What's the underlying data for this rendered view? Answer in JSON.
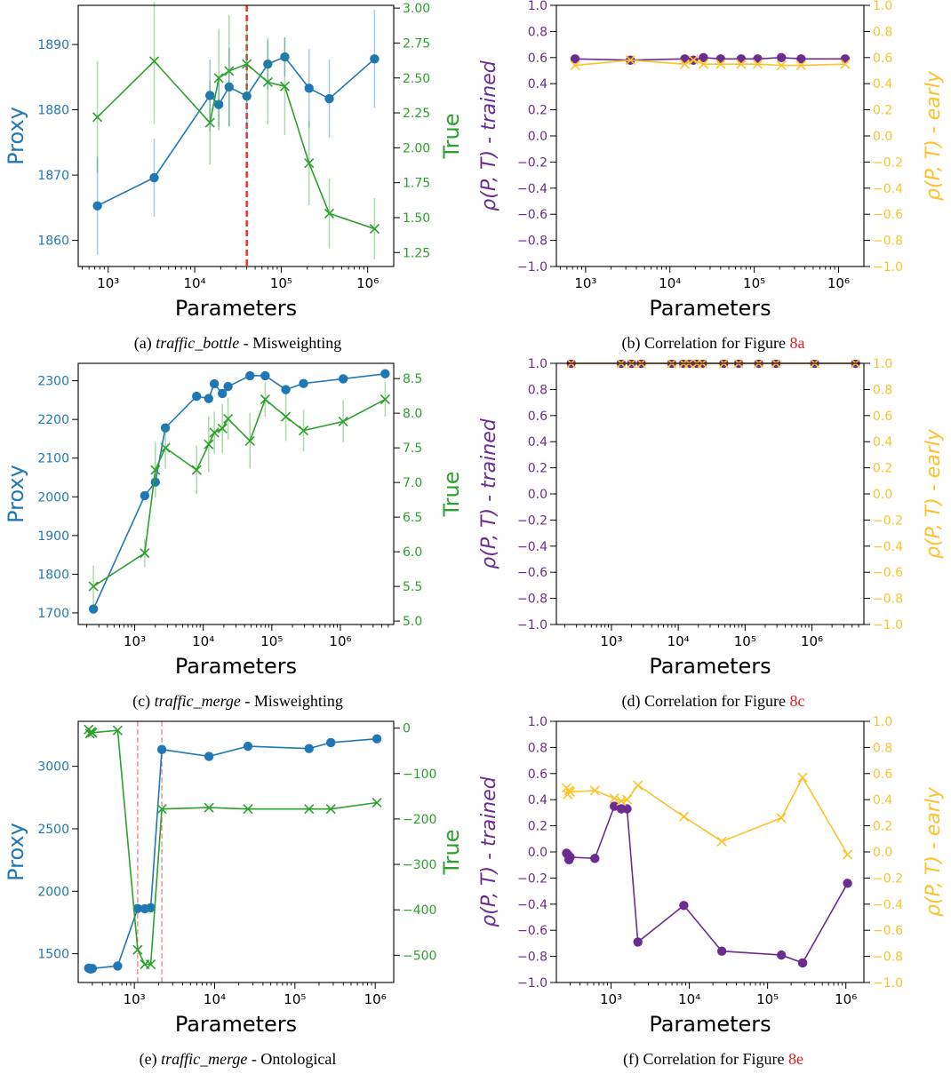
{
  "colors": {
    "proxy": "#1f77b4",
    "true": "#2ca02c",
    "trained": "#6a2c91",
    "early": "#fdc22b",
    "threshold": "#e8352e"
  },
  "panels": [
    {
      "id": "a",
      "caption": {
        "label": "(a)",
        "name": "traffic_bottle",
        "rest": " - Misweighting",
        "ref": ""
      },
      "chart": {
        "type": "line",
        "xscale": "log",
        "xlim": [
          450,
          2000000
        ],
        "xticks": [
          1000,
          10000,
          100000,
          1000000
        ],
        "xticklabels": [
          "10³",
          "10⁴",
          "10⁵",
          "10⁶"
        ],
        "xlabel": "Parameters",
        "left": {
          "label": "Proxy",
          "ylim": [
            1856,
            1896
          ],
          "ticks": [
            1860,
            1870,
            1880,
            1890
          ],
          "ticklabels": [
            "1860",
            "1870",
            "1880",
            "1890"
          ]
        },
        "right": {
          "label": "True",
          "ylim": [
            1.15,
            3.02
          ],
          "ticks": [
            1.25,
            1.5,
            1.75,
            2.0,
            2.25,
            2.5,
            2.75,
            3.0
          ],
          "ticklabels": [
            "1.25",
            "1.50",
            "1.75",
            "2.00",
            "2.25",
            "2.50",
            "2.75",
            "3.00"
          ]
        },
        "vlines": [
          {
            "x": 40000,
            "style": "thick"
          }
        ],
        "series": [
          {
            "name": "Proxy",
            "axis": "left",
            "marker": "circle",
            "x": [
              750,
              3400,
              15000,
              19000,
              25000,
              40000,
              70000,
              110000,
              210000,
              360000,
              1200000
            ],
            "y": [
              1865.3,
              1869.6,
              1882.2,
              1880.8,
              1883.5,
              1882.1,
              1887.0,
              1888.1,
              1883.3,
              1881.7,
              1887.8
            ],
            "err": [
              7.5,
              6.0,
              5.5,
              4.0,
              6.0,
              6.5,
              4.0,
              3.0,
              6.0,
              6.0,
              7.5
            ]
          },
          {
            "name": "True",
            "axis": "right",
            "marker": "x",
            "x": [
              750,
              3400,
              15000,
              19000,
              25000,
              40000,
              70000,
              110000,
              210000,
              360000,
              1200000
            ],
            "y": [
              2.22,
              2.62,
              2.18,
              2.5,
              2.55,
              2.6,
              2.47,
              2.44,
              1.89,
              1.53,
              1.42
            ],
            "err": [
              0.4,
              0.45,
              0.3,
              0.35,
              0.4,
              0.3,
              0.3,
              0.35,
              0.3,
              0.25,
              0.22
            ]
          }
        ]
      }
    },
    {
      "id": "b",
      "caption": {
        "label": "(b)",
        "name": "",
        "rest": " Correlation for Figure ",
        "ref": "8a"
      },
      "chart": {
        "type": "line",
        "xscale": "log",
        "xlim": [
          450,
          2000000
        ],
        "xticks": [
          1000,
          10000,
          100000,
          1000000
        ],
        "xticklabels": [
          "10³",
          "10⁴",
          "10⁵",
          "10⁶"
        ],
        "xlabel": "Parameters",
        "left": {
          "label": "ρ(P, T) - trained",
          "ylim": [
            -1.0,
            1.0
          ],
          "ticks": [
            -1.0,
            -0.8,
            -0.6,
            -0.4,
            -0.2,
            0.0,
            0.2,
            0.4,
            0.6,
            0.8,
            1.0
          ],
          "ticklabels": [
            "−1.0",
            "−0.8",
            "−0.6",
            "−0.4",
            "−0.2",
            "0.0",
            "0.2",
            "0.4",
            "0.6",
            "0.8",
            "1.0"
          ]
        },
        "right": {
          "label": "ρ(P, T) - early",
          "ylim": [
            -1.0,
            1.0
          ],
          "ticks": [
            -1.0,
            -0.8,
            -0.6,
            -0.4,
            -0.2,
            0.0,
            0.2,
            0.4,
            0.6,
            0.8,
            1.0
          ],
          "ticklabels": [
            "−1.0",
            "−0.8",
            "−0.6",
            "−0.4",
            "−0.2",
            "0.0",
            "0.2",
            "0.4",
            "0.6",
            "0.8",
            "1.0"
          ]
        },
        "vlines": [],
        "series": [
          {
            "name": "trained",
            "axis": "left",
            "marker": "circle",
            "x": [
              750,
              3400,
              15000,
              19000,
              25000,
              40000,
              70000,
              110000,
              210000,
              360000,
              1200000
            ],
            "y": [
              0.59,
              0.58,
              0.59,
              0.58,
              0.6,
              0.59,
              0.59,
              0.59,
              0.6,
              0.59,
              0.59
            ]
          },
          {
            "name": "early",
            "axis": "right",
            "marker": "x",
            "x": [
              750,
              3400,
              15000,
              19000,
              25000,
              40000,
              70000,
              110000,
              210000,
              360000,
              1200000
            ],
            "y": [
              0.54,
              0.58,
              0.55,
              0.58,
              0.55,
              0.55,
              0.55,
              0.55,
              0.54,
              0.54,
              0.55
            ]
          }
        ]
      }
    },
    {
      "id": "c",
      "caption": {
        "label": "(c)",
        "name": "traffic_merge",
        "rest": " - Misweighting",
        "ref": ""
      },
      "chart": {
        "type": "line",
        "xscale": "log",
        "xlim": [
          150,
          6000000
        ],
        "xticks": [
          1000,
          10000,
          100000,
          1000000
        ],
        "xticklabels": [
          "10³",
          "10⁴",
          "10⁵",
          "10⁶"
        ],
        "xlabel": "Parameters",
        "left": {
          "label": "Proxy",
          "ylim": [
            1670,
            2345
          ],
          "ticks": [
            1700,
            1800,
            1900,
            2000,
            2100,
            2200,
            2300
          ],
          "ticklabels": [
            "1700",
            "1800",
            "1900",
            "2000",
            "2100",
            "2200",
            "2300"
          ]
        },
        "right": {
          "label": "True",
          "ylim": [
            4.95,
            8.72
          ],
          "ticks": [
            5.0,
            5.5,
            6.0,
            6.5,
            7.0,
            7.5,
            8.0,
            8.5
          ],
          "ticklabels": [
            "5.0",
            "5.5",
            "6.0",
            "6.5",
            "7.0",
            "7.5",
            "8.0",
            "8.5"
          ]
        },
        "vlines": [],
        "series": [
          {
            "name": "Proxy",
            "axis": "left",
            "marker": "circle",
            "x": [
              250,
              1400,
              2000,
              2800,
              8000,
              12000,
              14500,
              19000,
              23000,
              48000,
              80000,
              160000,
              290000,
              1100000,
              4500000
            ],
            "y": [
              1710,
              2003,
              2038,
              2178,
              2260,
              2254,
              2292,
              2267,
              2285,
              2313,
              2313,
              2277,
              2293,
              2305,
              2318
            ]
          },
          {
            "name": "True",
            "axis": "right",
            "marker": "x",
            "x": [
              250,
              1400,
              2000,
              2800,
              8000,
              12000,
              14500,
              19000,
              23000,
              48000,
              80000,
              160000,
              290000,
              1100000,
              4500000
            ],
            "y": [
              5.5,
              5.98,
              7.18,
              7.5,
              7.18,
              7.55,
              7.72,
              7.78,
              7.92,
              7.6,
              8.2,
              7.95,
              7.75,
              7.88,
              8.2
            ],
            "err": [
              0.3,
              0.2,
              0.4,
              0.3,
              0.35,
              0.4,
              0.3,
              0.35,
              0.3,
              0.4,
              0.25,
              0.35,
              0.3,
              0.3,
              0.25
            ]
          }
        ]
      }
    },
    {
      "id": "d",
      "caption": {
        "label": "(d)",
        "name": "",
        "rest": " Correlation for Figure ",
        "ref": "8c"
      },
      "chart": {
        "type": "line",
        "xscale": "log",
        "xlim": [
          150,
          6000000
        ],
        "xticks": [
          1000,
          10000,
          100000,
          1000000
        ],
        "xticklabels": [
          "10³",
          "10⁴",
          "10⁵",
          "10⁶"
        ],
        "xlabel": "Parameters",
        "left": {
          "label": "ρ(P, T) - trained",
          "ylim": [
            -1.0,
            1.0
          ],
          "ticks": [
            -1.0,
            -0.8,
            -0.6,
            -0.4,
            -0.2,
            0.0,
            0.2,
            0.4,
            0.6,
            0.8,
            1.0
          ],
          "ticklabels": [
            "−1.0",
            "−0.8",
            "−0.6",
            "−0.4",
            "−0.2",
            "0.0",
            "0.2",
            "0.4",
            "0.6",
            "0.8",
            "1.0"
          ]
        },
        "right": {
          "label": "ρ(P, T) - early",
          "ylim": [
            -1.0,
            1.0
          ],
          "ticks": [
            -1.0,
            -0.8,
            -0.6,
            -0.4,
            -0.2,
            0.0,
            0.2,
            0.4,
            0.6,
            0.8,
            1.0
          ],
          "ticklabels": [
            "−1.0",
            "−0.8",
            "−0.6",
            "−0.4",
            "−0.2",
            "0.0",
            "0.2",
            "0.4",
            "0.6",
            "0.8",
            "1.0"
          ]
        },
        "vlines": [],
        "series": [
          {
            "name": "trained",
            "axis": "left",
            "marker": "circle",
            "x": [
              250,
              1400,
              2000,
              2800,
              8000,
              12000,
              14500,
              19000,
              23000,
              48000,
              80000,
              160000,
              290000,
              1100000,
              4500000
            ],
            "y": [
              1.0,
              1.0,
              1.0,
              1.0,
              1.0,
              1.0,
              1.0,
              1.0,
              1.0,
              1.0,
              1.0,
              1.0,
              1.0,
              1.0,
              1.0
            ]
          },
          {
            "name": "early",
            "axis": "right",
            "marker": "x",
            "x": [
              250,
              1400,
              2000,
              2800,
              8000,
              12000,
              14500,
              19000,
              23000,
              48000,
              80000,
              160000,
              290000,
              1100000,
              4500000
            ],
            "y": [
              1.0,
              1.0,
              1.0,
              1.0,
              1.0,
              1.0,
              1.0,
              1.0,
              1.0,
              1.0,
              1.0,
              1.0,
              1.0,
              1.0,
              1.0
            ]
          }
        ]
      }
    },
    {
      "id": "e",
      "caption": {
        "label": "(e)",
        "name": "traffic_merge",
        "rest": " - Ontological",
        "ref": ""
      },
      "chart": {
        "type": "line",
        "xscale": "log",
        "xlim": [
          200,
          1700000
        ],
        "xticks": [
          1000,
          10000,
          100000,
          1000000
        ],
        "xticklabels": [
          "10³",
          "10⁴",
          "10⁵",
          "10⁶"
        ],
        "xlabel": "Parameters",
        "left": {
          "label": "Proxy",
          "ylim": [
            1270,
            3360
          ],
          "ticks": [
            1500,
            2000,
            2500,
            3000
          ],
          "ticklabels": [
            "1500",
            "2000",
            "2500",
            "3000"
          ]
        },
        "right": {
          "label": "True",
          "ylim": [
            -560,
            15
          ],
          "ticks": [
            -500,
            -400,
            -300,
            -200,
            -100,
            0
          ],
          "ticklabels": [
            "−500",
            "−400",
            "−300",
            "−200",
            "−100",
            "0"
          ]
        },
        "vlines": [
          {
            "x": 1100,
            "style": "thin"
          },
          {
            "x": 2200,
            "style": "thin"
          }
        ],
        "series": [
          {
            "name": "Proxy",
            "axis": "left",
            "marker": "circle",
            "x": [
              270,
              280,
              290,
              300,
              620,
              1100,
              1350,
              1600,
              2200,
              8500,
              26000,
              150000,
              280000,
              1050000
            ],
            "y": [
              1385,
              1380,
              1378,
              1382,
              1402,
              1862,
              1860,
              1868,
              3135,
              3080,
              3160,
              3142,
              3190,
              3220
            ]
          },
          {
            "name": "True",
            "axis": "right",
            "marker": "x",
            "x": [
              270,
              280,
              290,
              300,
              620,
              1100,
              1350,
              1600,
              2200,
              8500,
              26000,
              150000,
              280000,
              1050000
            ],
            "y": [
              -3,
              -12,
              -8,
              -10,
              -5,
              -488,
              -520,
              -520,
              -178,
              -175,
              -178,
              -178,
              -178,
              -164
            ]
          }
        ]
      }
    },
    {
      "id": "f",
      "caption": {
        "label": "(f)",
        "name": "",
        "rest": " Correlation for Figure ",
        "ref": "8e"
      },
      "chart": {
        "type": "line",
        "xscale": "log",
        "xlim": [
          200,
          1700000
        ],
        "xticks": [
          1000,
          10000,
          100000,
          1000000
        ],
        "xticklabels": [
          "10³",
          "10⁴",
          "10⁵",
          "10⁶"
        ],
        "xlabel": "Parameters",
        "left": {
          "label": "ρ(P, T) - trained",
          "ylim": [
            -1.0,
            1.0
          ],
          "ticks": [
            -1.0,
            -0.8,
            -0.6,
            -0.4,
            -0.2,
            0.0,
            0.2,
            0.4,
            0.6,
            0.8,
            1.0
          ],
          "ticklabels": [
            "−1.0",
            "−0.8",
            "−0.6",
            "−0.4",
            "−0.2",
            "0.0",
            "0.2",
            "0.4",
            "0.6",
            "0.8",
            "1.0"
          ]
        },
        "right": {
          "label": "ρ(P, T) - early",
          "ylim": [
            -1.0,
            1.0
          ],
          "ticks": [
            -1.0,
            -0.8,
            -0.6,
            -0.4,
            -0.2,
            0.0,
            0.2,
            0.4,
            0.6,
            0.8,
            1.0
          ],
          "ticklabels": [
            "−1.0",
            "−0.8",
            "−0.6",
            "−0.4",
            "−0.2",
            "0.0",
            "0.2",
            "0.4",
            "0.6",
            "0.8",
            "1.0"
          ]
        },
        "vlines": [],
        "series": [
          {
            "name": "trained",
            "axis": "left",
            "marker": "circle",
            "x": [
              270,
              280,
              290,
              300,
              620,
              1100,
              1350,
              1600,
              2200,
              8500,
              26000,
              150000,
              280000,
              1050000
            ],
            "y": [
              -0.01,
              -0.02,
              -0.06,
              -0.04,
              -0.05,
              0.35,
              0.33,
              0.33,
              -0.69,
              -0.41,
              -0.76,
              -0.79,
              -0.85,
              -0.24
            ]
          },
          {
            "name": "early",
            "axis": "right",
            "marker": "x",
            "x": [
              270,
              280,
              290,
              300,
              620,
              1100,
              1350,
              1600,
              2200,
              8500,
              26000,
              150000,
              280000,
              1050000
            ],
            "y": [
              0.49,
              0.44,
              0.47,
              0.46,
              0.47,
              0.41,
              0.39,
              0.4,
              0.51,
              0.27,
              0.08,
              0.26,
              0.57,
              -0.02
            ]
          }
        ]
      }
    }
  ]
}
